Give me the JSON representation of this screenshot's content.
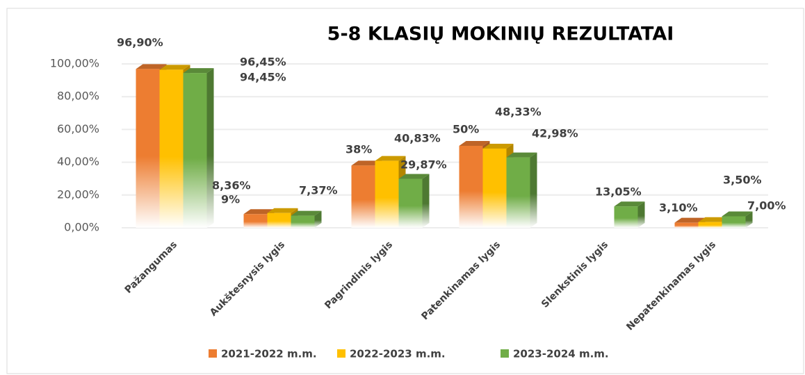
{
  "chart_data": {
    "type": "bar3d",
    "title": "5-8 KLASIŲ MOKINIŲ REZULTATAI",
    "categories": [
      "Pažangumas",
      "Aukštesnysis lygis",
      "Pagrindinis lygis",
      "Patenkinamas lygis",
      "Slenkstinis lygis",
      "Nepatenkinamas lygis"
    ],
    "series": [
      {
        "name": "2021-2022 m.m.",
        "color": "#ed7d31",
        "values": [
          96.9,
          8.36,
          38,
          50,
          null,
          3.1
        ],
        "value_labels": [
          "96,90%",
          "8,36%",
          "38%",
          "50%",
          null,
          "3,10%"
        ]
      },
      {
        "name": "2022-2023 m.m.",
        "color": "#ffc000",
        "values": [
          96.45,
          9,
          40.83,
          48.33,
          null,
          3.5
        ],
        "value_labels": [
          "96,45%",
          "9%",
          "40,83%",
          "48,33%",
          null,
          "3,50%"
        ]
      },
      {
        "name": "2023-2024 m.m.",
        "color": "#70ad47",
        "values": [
          94.45,
          7.37,
          29.87,
          42.98,
          13.05,
          7
        ],
        "value_labels": [
          "94,45%",
          "7,37%",
          "29,87%",
          "42,98%",
          "13,05%",
          "7,00%"
        ]
      }
    ],
    "ylim": [
      0,
      100
    ],
    "yticks": [
      {
        "value": 0,
        "label": "0,00%"
      },
      {
        "value": 20,
        "label": "20,00%"
      },
      {
        "value": 40,
        "label": "40,00%"
      },
      {
        "value": 60,
        "label": "60,00%"
      },
      {
        "value": 80,
        "label": "80,00%"
      },
      {
        "value": 100,
        "label": "100,00%"
      }
    ],
    "grid": true,
    "legend": "bottom"
  }
}
